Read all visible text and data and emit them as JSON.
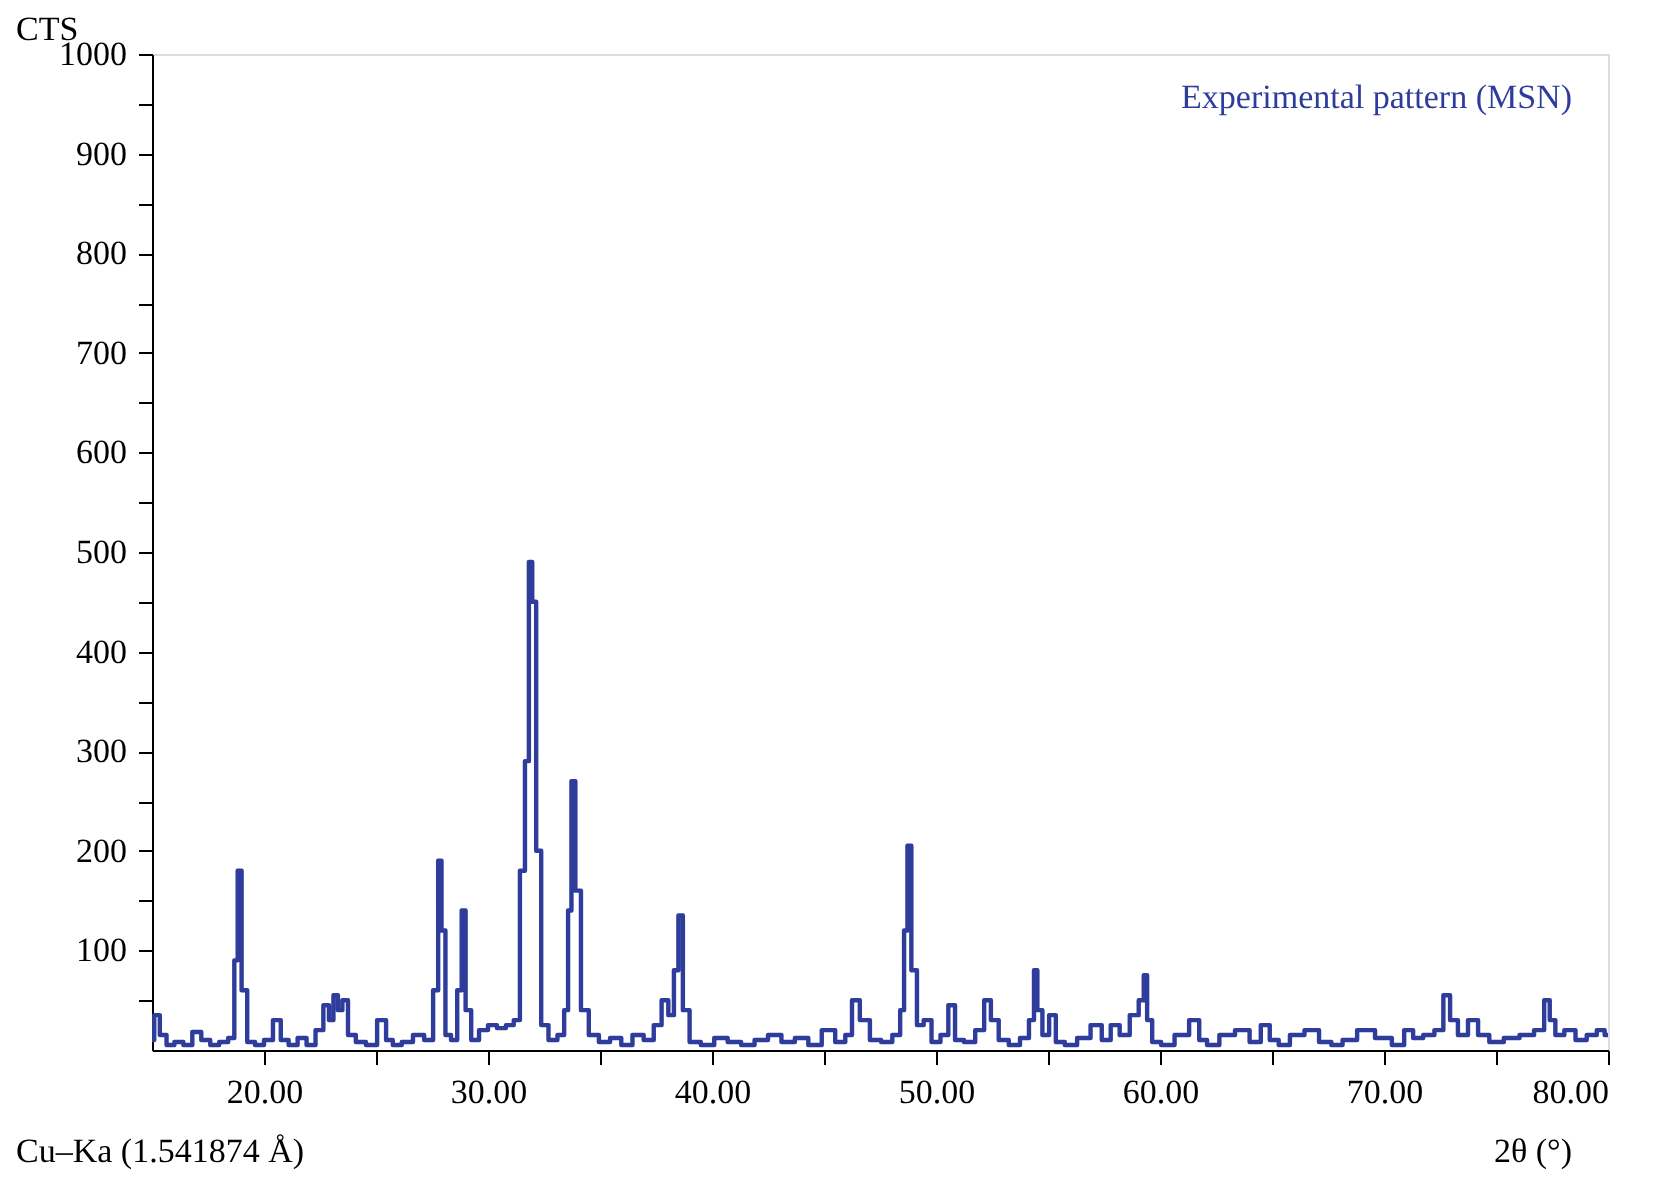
{
  "chart_data": {
    "type": "step",
    "ylabel": "CTS",
    "xlabel": "2θ (°)",
    "annotations": [
      "Cu–Ka (1.541874 Å)"
    ],
    "xlim": [
      15,
      80
    ],
    "xticks": [
      {
        "value": 20,
        "label": "20.00"
      },
      {
        "value": 25,
        "label": null
      },
      {
        "value": 30,
        "label": "30.00"
      },
      {
        "value": 35,
        "label": null
      },
      {
        "value": 40,
        "label": "40.00"
      },
      {
        "value": 45,
        "label": null
      },
      {
        "value": 50,
        "label": "50.00"
      },
      {
        "value": 55,
        "label": null
      },
      {
        "value": 60,
        "label": "60.00"
      },
      {
        "value": 65,
        "label": null
      },
      {
        "value": 70,
        "label": "70.00"
      },
      {
        "value": 75,
        "label": null
      },
      {
        "value": 80,
        "label": "80.00"
      }
    ],
    "ylim": [
      0,
      1000
    ],
    "yticks": [
      {
        "value": 50,
        "label": null
      },
      100,
      {
        "value": 150,
        "label": null
      },
      200,
      {
        "value": 250,
        "label": null
      },
      300,
      {
        "value": 350,
        "label": null
      },
      400,
      {
        "value": 450,
        "label": null
      },
      500,
      {
        "value": 550,
        "label": null
      },
      600,
      {
        "value": 650,
        "label": null
      },
      700,
      {
        "value": 750,
        "label": null
      },
      800,
      {
        "value": 850,
        "label": null
      },
      900,
      {
        "value": 950,
        "label": null
      },
      1000
    ],
    "grid": false,
    "legend": "top right",
    "line_style": "solid",
    "marker": "none",
    "x": [
      15.0,
      15.2,
      15.5,
      15.8,
      16.2,
      16.6,
      17.0,
      17.4,
      17.8,
      18.2,
      18.6,
      18.75,
      18.9,
      19.1,
      19.4,
      19.8,
      20.2,
      20.6,
      20.9,
      21.3,
      21.7,
      22.1,
      22.5,
      22.8,
      23.0,
      23.2,
      23.4,
      23.6,
      23.9,
      24.3,
      24.8,
      25.3,
      25.6,
      25.9,
      26.4,
      26.9,
      27.4,
      27.7,
      27.85,
      28.0,
      28.2,
      28.5,
      28.75,
      28.9,
      29.1,
      29.4,
      29.8,
      30.2,
      30.6,
      31.0,
      31.3,
      31.55,
      31.75,
      31.9,
      32.05,
      32.25,
      32.5,
      32.9,
      33.3,
      33.5,
      33.65,
      33.8,
      34.0,
      34.3,
      34.7,
      35.2,
      35.7,
      36.2,
      36.7,
      37.2,
      37.6,
      37.9,
      38.2,
      38.4,
      38.6,
      38.8,
      39.2,
      39.8,
      40.4,
      41.0,
      41.6,
      42.2,
      42.8,
      43.4,
      44.0,
      44.6,
      45.2,
      45.8,
      46.1,
      46.4,
      46.8,
      47.3,
      47.8,
      48.3,
      48.5,
      48.65,
      48.8,
      49.0,
      49.3,
      49.6,
      50.0,
      50.4,
      50.7,
      51.0,
      51.5,
      52.0,
      52.3,
      52.6,
      53.0,
      53.5,
      54.0,
      54.3,
      54.45,
      54.6,
      54.9,
      55.2,
      55.5,
      56.0,
      56.6,
      57.2,
      57.6,
      58.0,
      58.4,
      58.9,
      59.2,
      59.35,
      59.5,
      59.8,
      60.3,
      61.0,
      61.6,
      61.9,
      62.3,
      63.0,
      63.7,
      64.3,
      64.7,
      65.1,
      65.5,
      66.1,
      66.8,
      67.4,
      67.9,
      68.4,
      69.2,
      70.0,
      70.7,
      71.1,
      71.5,
      72.0,
      72.5,
      72.8,
      73.1,
      73.5,
      74.0,
      74.4,
      75.0,
      75.7,
      76.4,
      77.0,
      77.3,
      77.5,
      77.8,
      78.3,
      78.8,
      79.3,
      79.7,
      80.0
    ],
    "series": [
      {
        "name": "Experimental pattern (MSN)",
        "color": "#2e3c9c",
        "values": [
          10,
          35,
          15,
          5,
          8,
          5,
          18,
          10,
          5,
          8,
          12,
          90,
          180,
          60,
          8,
          5,
          10,
          30,
          10,
          5,
          12,
          5,
          20,
          45,
          30,
          55,
          40,
          50,
          15,
          8,
          5,
          30,
          10,
          5,
          8,
          15,
          10,
          60,
          190,
          120,
          15,
          10,
          60,
          140,
          40,
          10,
          20,
          25,
          22,
          25,
          30,
          180,
          290,
          490,
          450,
          200,
          25,
          10,
          15,
          40,
          140,
          270,
          160,
          40,
          15,
          8,
          12,
          5,
          15,
          10,
          25,
          50,
          35,
          80,
          135,
          40,
          8,
          5,
          12,
          8,
          5,
          10,
          15,
          8,
          12,
          5,
          20,
          8,
          15,
          50,
          30,
          10,
          8,
          15,
          40,
          120,
          205,
          80,
          25,
          30,
          8,
          15,
          45,
          10,
          8,
          20,
          50,
          30,
          10,
          5,
          12,
          30,
          80,
          40,
          15,
          35,
          8,
          5,
          12,
          25,
          10,
          25,
          15,
          35,
          50,
          75,
          30,
          8,
          5,
          15,
          30,
          10,
          5,
          15,
          20,
          8,
          25,
          10,
          5,
          15,
          20,
          8,
          5,
          10,
          20,
          12,
          5,
          20,
          12,
          15,
          20,
          55,
          30,
          15,
          30,
          15,
          8,
          12,
          15,
          20,
          50,
          30,
          15,
          20,
          10,
          15,
          20,
          15
        ]
      }
    ]
  }
}
